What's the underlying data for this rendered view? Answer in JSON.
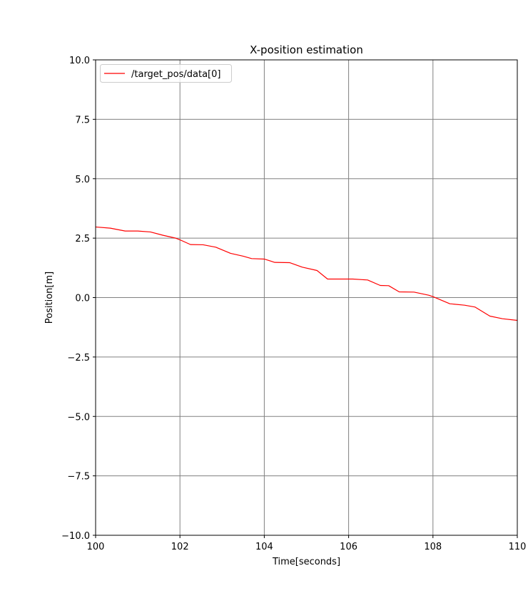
{
  "chart_data": {
    "type": "line",
    "title": "X-position estimation",
    "xlabel": "Time[seconds]",
    "ylabel": "Position[m]",
    "xlim": [
      100,
      110
    ],
    "ylim": [
      -10,
      10
    ],
    "xticks": [
      100,
      102,
      104,
      106,
      108,
      110
    ],
    "xtick_labels": [
      "100",
      "102",
      "104",
      "106",
      "108",
      "110"
    ],
    "yticks": [
      -10,
      -7.5,
      -5,
      -2.5,
      0,
      2.5,
      5,
      7.5,
      10
    ],
    "ytick_labels": [
      "−10.0",
      "−7.5",
      "−5.0",
      "−2.5",
      "0.0",
      "2.5",
      "5.0",
      "7.5",
      "10.0"
    ],
    "grid": true,
    "legend_position": "top-left",
    "series": [
      {
        "name": "/target_pos/data[0]",
        "color": "#ff0000",
        "x": [
          100.0,
          100.35,
          100.7,
          101.0,
          101.3,
          101.6,
          101.9,
          102.0,
          102.25,
          102.55,
          102.85,
          103.2,
          103.5,
          103.7,
          104.0,
          104.25,
          104.6,
          104.9,
          105.25,
          105.5,
          105.8,
          106.1,
          106.45,
          106.75,
          106.95,
          107.2,
          107.55,
          107.9,
          108.0,
          108.4,
          108.75,
          109.0,
          109.35,
          109.65,
          110.0
        ],
        "y": [
          2.97,
          2.92,
          2.8,
          2.8,
          2.76,
          2.62,
          2.5,
          2.43,
          2.23,
          2.22,
          2.12,
          1.86,
          1.74,
          1.64,
          1.62,
          1.48,
          1.47,
          1.28,
          1.14,
          0.78,
          0.78,
          0.78,
          0.74,
          0.51,
          0.5,
          0.24,
          0.23,
          0.1,
          0.04,
          -0.26,
          -0.32,
          -0.4,
          -0.78,
          -0.89,
          -0.96
        ]
      }
    ]
  }
}
